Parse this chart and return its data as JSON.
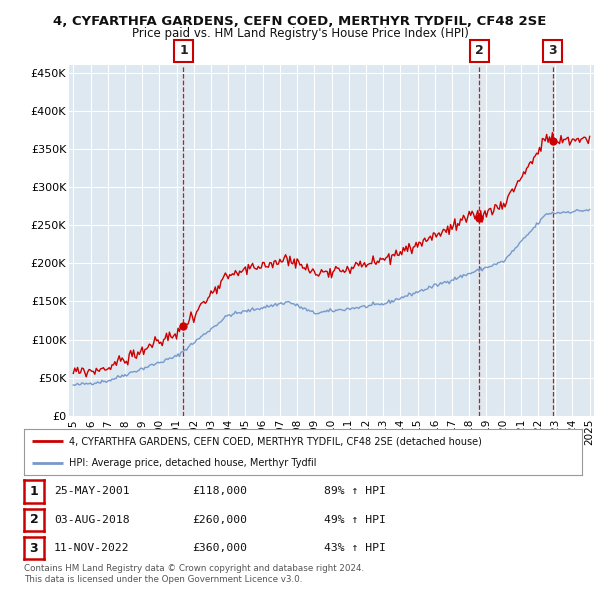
{
  "title": "4, CYFARTHFA GARDENS, CEFN COED, MERTHYR TYDFIL, CF48 2SE",
  "subtitle": "Price paid vs. HM Land Registry's House Price Index (HPI)",
  "ylim": [
    0,
    460000
  ],
  "yticks": [
    0,
    50000,
    100000,
    150000,
    200000,
    250000,
    300000,
    350000,
    400000,
    450000
  ],
  "ytick_labels": [
    "£0",
    "£50K",
    "£100K",
    "£150K",
    "£200K",
    "£250K",
    "£300K",
    "£350K",
    "£400K",
    "£450K"
  ],
  "hpi_color": "#7799cc",
  "price_color": "#cc0000",
  "sale_marker_color": "#cc0000",
  "vline_color": "#cc0000",
  "plot_bg_color": "#dde8f0",
  "background_color": "#ffffff",
  "grid_color": "#ffffff",
  "sales": [
    {
      "date_num": 2001.4,
      "price": 118000,
      "label": "1",
      "date_str": "25-MAY-2001",
      "pct": "89% ↑ HPI"
    },
    {
      "date_num": 2018.58,
      "price": 260000,
      "label": "2",
      "date_str": "03-AUG-2018",
      "pct": "49% ↑ HPI"
    },
    {
      "date_num": 2022.86,
      "price": 360000,
      "label": "3",
      "date_str": "11-NOV-2022",
      "pct": "43% ↑ HPI"
    }
  ],
  "legend_line1": "4, CYFARTHFA GARDENS, CEFN COED, MERTHYR TYDFIL, CF48 2SE (detached house)",
  "legend_line2": "HPI: Average price, detached house, Merthyr Tydfil",
  "footer1": "Contains HM Land Registry data © Crown copyright and database right 2024.",
  "footer2": "This data is licensed under the Open Government Licence v3.0.",
  "xlim": [
    1994.75,
    2025.25
  ],
  "xticks": [
    1995,
    1996,
    1997,
    1998,
    1999,
    2000,
    2001,
    2002,
    2003,
    2004,
    2005,
    2006,
    2007,
    2008,
    2009,
    2010,
    2011,
    2012,
    2013,
    2014,
    2015,
    2016,
    2017,
    2018,
    2019,
    2020,
    2021,
    2022,
    2023,
    2024,
    2025
  ]
}
